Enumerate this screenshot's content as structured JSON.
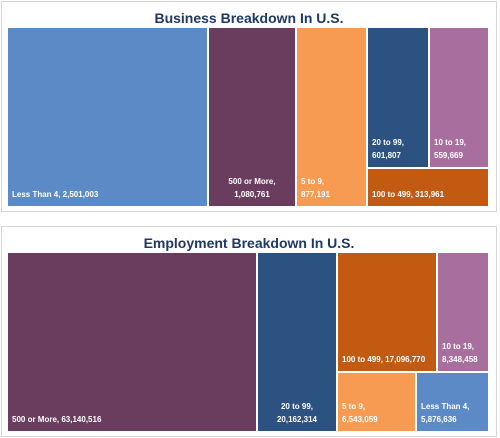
{
  "chart_data": [
    {
      "type": "treemap",
      "title": "Business Breakdown In U.S.",
      "items": [
        {
          "label": "Less Than 4, 2,501,003",
          "value": 2501003,
          "color": "#5b8ac6"
        },
        {
          "label": "500 or More, 1,080,761",
          "value": 1080761,
          "color": "#6a3d5e"
        },
        {
          "label": "5 to 9, 877,191",
          "value": 877191,
          "color": "#f79a52"
        },
        {
          "label": "20 to 99, 601,807",
          "value": 601807,
          "color": "#2c5282"
        },
        {
          "label": "10 to 19, 559,669",
          "value": 559669,
          "color": "#a86e9e"
        },
        {
          "label": "100 to 499, 313,961",
          "value": 313961,
          "color": "#c35a12"
        }
      ]
    },
    {
      "type": "treemap",
      "title": "Employment Breakdown In U.S.",
      "items": [
        {
          "label": "500 or More, 63,140,516",
          "value": 63140516,
          "color": "#6a3d5e"
        },
        {
          "label": "20 to 99, 20,162,314",
          "value": 20162314,
          "color": "#2c5282"
        },
        {
          "label": "100 to 499, 17,096,770",
          "value": 17096770,
          "color": "#c35a12"
        },
        {
          "label": "10 to 19, 8,348,458",
          "value": 8348458,
          "color": "#a86e9e"
        },
        {
          "label": "5 to 9, 6,543,059",
          "value": 6543059,
          "color": "#f79a52"
        },
        {
          "label": "Less Than 4, 5,876,636",
          "value": 5876636,
          "color": "#5b8ac6"
        }
      ]
    }
  ]
}
